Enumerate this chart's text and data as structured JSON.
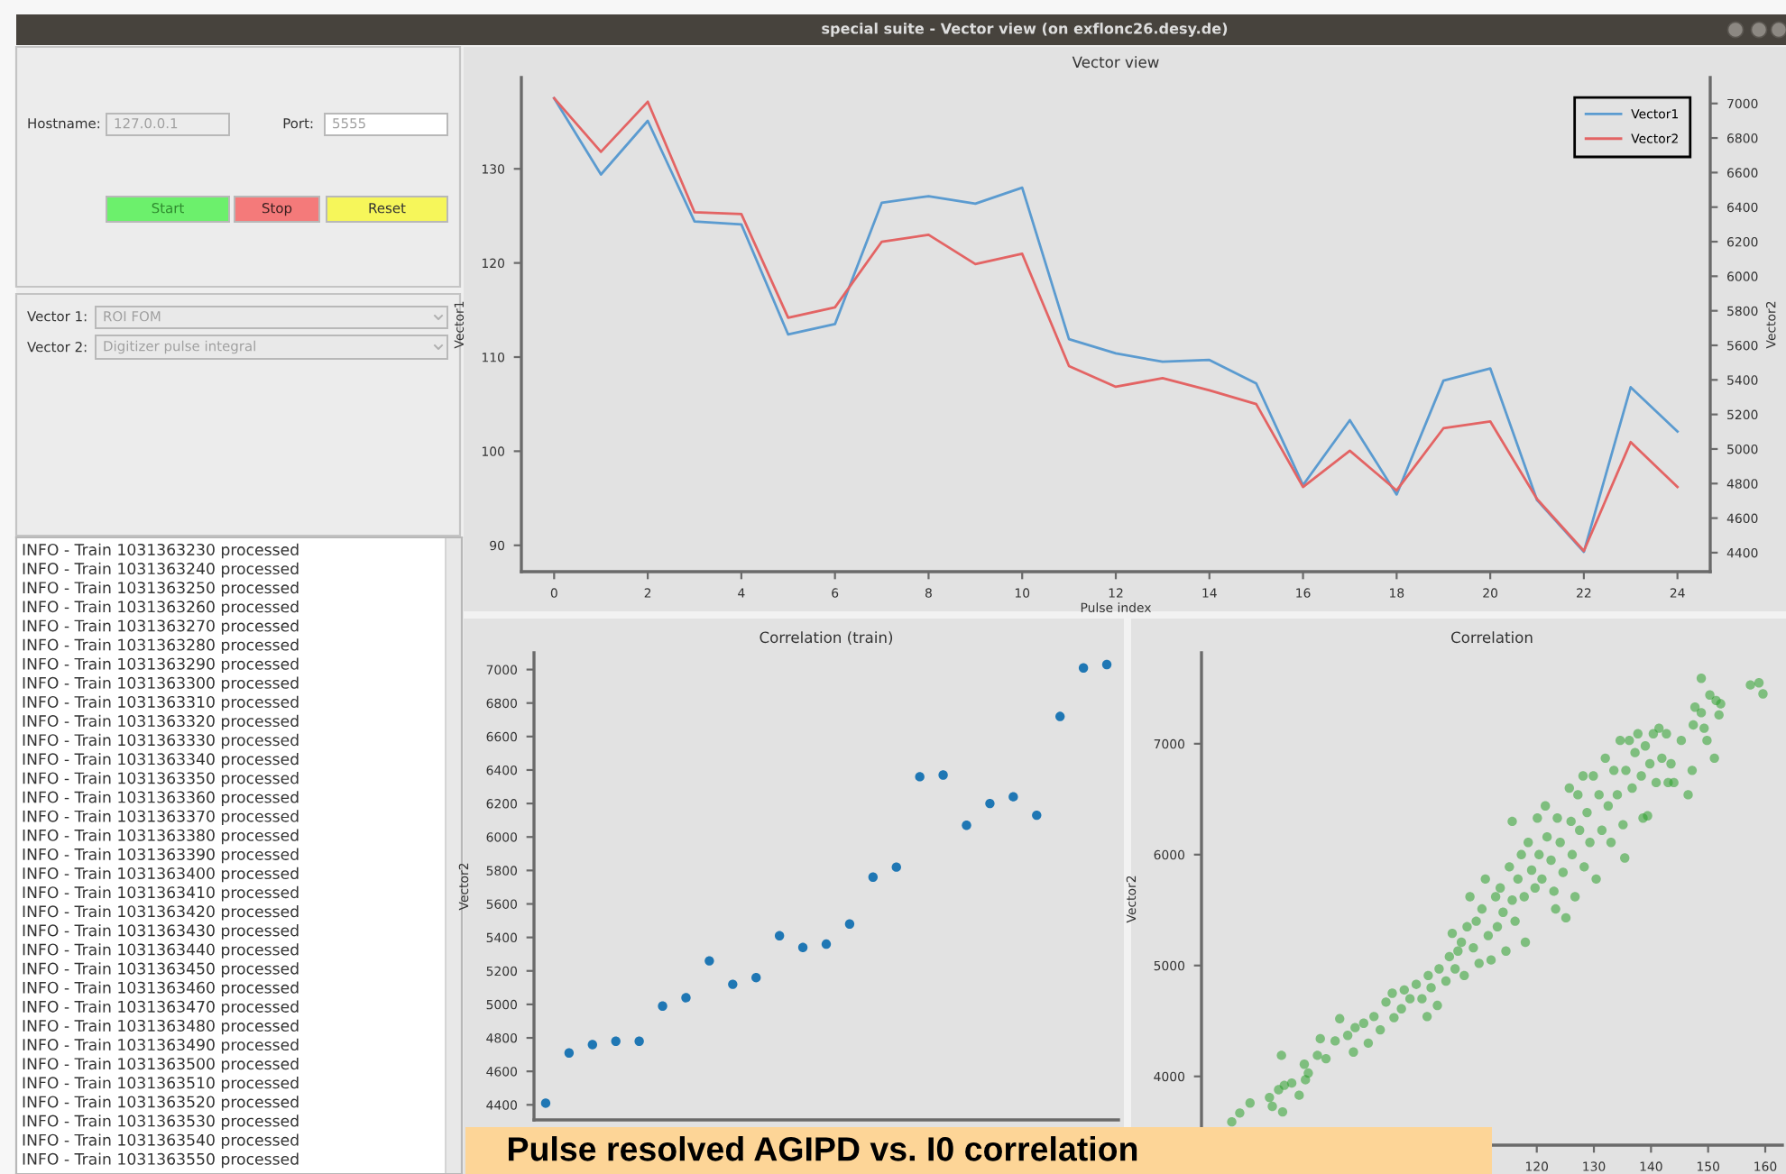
{
  "chart_data": [
    {
      "type": "other",
      "title": "special suite - Vector view (on exflonc26.desy.de)",
      "annotations": [
        "Hostname:",
        "127.0.0.1",
        "Port:",
        "5555",
        "Start",
        "Stop",
        "Reset",
        "Vector 1:",
        "ROI FOM",
        "Vector 2:",
        "Digitizer pulse integral"
      ]
    },
    {
      "type": "other",
      "annotations": [
        "INFO - Train 1031363230 processed",
        "INFO - Train 1031363240 processed",
        "INFO - Train 1031363250 processed",
        "INFO - Train 1031363260 processed",
        "INFO - Train 1031363270 processed",
        "INFO - Train 1031363280 processed",
        "INFO - Train 1031363290 processed",
        "INFO - Train 1031363300 processed",
        "INFO - Train 1031363310 processed",
        "INFO - Train 1031363320 processed",
        "INFO - Train 1031363330 processed",
        "INFO - Train 1031363340 processed",
        "INFO - Train 1031363350 processed",
        "INFO - Train 1031363360 processed",
        "INFO - Train 1031363370 processed",
        "INFO - Train 1031363380 processed",
        "INFO - Train 1031363390 processed",
        "INFO - Train 1031363400 processed",
        "INFO - Train 1031363410 processed",
        "INFO - Train 1031363420 processed",
        "INFO - Train 1031363430 processed",
        "INFO - Train 1031363440 processed",
        "INFO - Train 1031363450 processed",
        "INFO - Train 1031363460 processed",
        "INFO - Train 1031363470 processed",
        "INFO - Train 1031363480 processed",
        "INFO - Train 1031363490 processed",
        "INFO - Train 1031363500 processed",
        "INFO - Train 1031363510 processed",
        "INFO - Train 1031363520 processed",
        "INFO - Train 1031363530 processed",
        "INFO - Train 1031363540 processed",
        "INFO - Train 1031363550 processed"
      ]
    },
    {
      "type": "line",
      "title": "Vector view",
      "xlabel": "Pulse index",
      "ylabel": "Vector1",
      "y2label": "Vector2",
      "legend": "top right",
      "x": [
        0,
        1,
        2,
        3,
        4,
        5,
        6,
        7,
        8,
        9,
        10,
        11,
        12,
        13,
        14,
        15,
        16,
        17,
        18,
        19,
        20,
        21,
        22,
        23,
        24
      ],
      "xlim": [
        -0.7,
        24.7
      ],
      "xticks": [
        0,
        2,
        4,
        6,
        8,
        10,
        12,
        14,
        16,
        18,
        20,
        22,
        24
      ],
      "ylim": [
        87.2,
        139.7
      ],
      "yticks": [
        90,
        100,
        110,
        120,
        130
      ],
      "y2lim": [
        4290,
        7150
      ],
      "y2ticks": [
        4400,
        4600,
        4800,
        5000,
        5200,
        5400,
        5600,
        5800,
        6000,
        6200,
        6400,
        6600,
        6800,
        7000
      ],
      "series": [
        {
          "name": "Vector1",
          "color": "#5b9bd0",
          "values": [
            137.5,
            129.4,
            135.1,
            124.4,
            124.1,
            112.4,
            113.5,
            126.4,
            127.1,
            126.3,
            128.0,
            111.9,
            110.4,
            109.5,
            109.7,
            107.2,
            96.4,
            103.3,
            95.4,
            107.5,
            108.8,
            94.8,
            89.3,
            106.8,
            102.1
          ]
        },
        {
          "name": "Vector2",
          "color": "#e36464",
          "axis": "y2",
          "values": [
            7030,
            6720,
            7010,
            6370,
            6360,
            5760,
            5820,
            6200,
            6240,
            6070,
            6130,
            5480,
            5360,
            5410,
            5340,
            5260,
            4780,
            4990,
            4760,
            5120,
            5160,
            4710,
            4410,
            5040,
            4780
          ]
        }
      ]
    },
    {
      "type": "scatter",
      "title": "Correlation (train)",
      "ylabel": "Vector2",
      "marker": "circle",
      "tick_labels": "y",
      "categories": [
        null,
        null,
        null,
        null,
        null,
        null,
        null,
        null,
        null,
        null,
        null,
        null,
        null,
        null,
        null,
        null,
        null,
        null,
        null,
        null,
        null,
        null,
        null,
        null,
        null
      ],
      "ylim": [
        4310,
        7100
      ],
      "yticks": [
        4400,
        4600,
        4800,
        5000,
        5200,
        5400,
        5600,
        5800,
        6000,
        6200,
        6400,
        6600,
        6800,
        7000
      ],
      "series": [
        {
          "color": "#1f77b4",
          "values": [
            4410,
            4710,
            4760,
            4780,
            4780,
            4990,
            5040,
            5260,
            5120,
            5160,
            5410,
            5340,
            5360,
            5480,
            5760,
            5820,
            6360,
            6370,
            6070,
            6200,
            6240,
            6130,
            6720,
            7010,
            7030
          ]
        }
      ]
    },
    {
      "type": "scatter",
      "title": "Correlation",
      "ylabel": "Vector2",
      "marker": "circle",
      "x": [
        66.6,
        68.0,
        69.8,
        73.2,
        73.7,
        74.8,
        75.3,
        75.5,
        75.8,
        77.1,
        78.4,
        79.3,
        79.5,
        80.0,
        81.6,
        82.1,
        83.1,
        84.7,
        85.5,
        86.9,
        87.9,
        88.2,
        89.7,
        90.5,
        91.5,
        92.6,
        93.6,
        94.7,
        95.0,
        96.3,
        96.8,
        97.8,
        98.9,
        99.9,
        100.8,
        101.0,
        101.5,
        102.6,
        102.9,
        104.1,
        104.7,
        105.2,
        105.7,
        106.2,
        106.8,
        107.3,
        107.8,
        108.3,
        108.9,
        109.4,
        109.9,
        110.4,
        111.0,
        111.5,
        112.0,
        112.8,
        113.1,
        113.6,
        114.1,
        114.6,
        115.2,
        115.7,
        115.7,
        116.2,
        116.7,
        117.3,
        117.8,
        118.0,
        118.5,
        119.1,
        119.7,
        120.1,
        120.4,
        120.9,
        121.5,
        121.8,
        122.5,
        123.0,
        123.3,
        123.6,
        124.1,
        124.6,
        125.1,
        125.7,
        126.0,
        126.2,
        126.7,
        127.2,
        127.5,
        128.1,
        128.3,
        128.8,
        129.3,
        129.9,
        130.4,
        130.9,
        131.4,
        132.0,
        132.5,
        133.0,
        133.5,
        134.1,
        134.6,
        135.1,
        135.4,
        135.6,
        136.2,
        136.7,
        137.2,
        137.7,
        138.3,
        138.6,
        139.0,
        139.4,
        139.8,
        140.4,
        140.9,
        141.4,
        141.9,
        142.7,
        143.0,
        143.5,
        144.0,
        145.3,
        146.5,
        147.2,
        147.4,
        147.7,
        148.8,
        149.3,
        148.8,
        149.8,
        150.3,
        151.1,
        151.4,
        151.9,
        152.2,
        157.4,
        158.9,
        159.6
      ],
      "xlim": [
        61.3,
        163
      ],
      "xticks": [
        120,
        130,
        140,
        150,
        160
      ],
      "ylim": [
        3380,
        7820
      ],
      "yticks": [
        4000,
        5000,
        6000,
        7000
      ],
      "series": [
        {
          "color": "#2ca02c",
          "values": [
            3590,
            3670,
            3760,
            3810,
            3730,
            3880,
            4190,
            3680,
            3920,
            3940,
            3830,
            4110,
            3970,
            4030,
            4190,
            4340,
            4160,
            4320,
            4520,
            4370,
            4220,
            4440,
            4480,
            4300,
            4540,
            4420,
            4670,
            4750,
            4530,
            4610,
            4780,
            4700,
            4830,
            4700,
            4540,
            4910,
            4800,
            4640,
            4970,
            4860,
            5080,
            5290,
            4970,
            5130,
            5210,
            4910,
            5350,
            5620,
            5160,
            5400,
            5020,
            5510,
            5780,
            5270,
            5050,
            5620,
            5350,
            5700,
            5480,
            5130,
            5890,
            6300,
            5590,
            5400,
            5780,
            6000,
            5620,
            5210,
            6110,
            5860,
            5700,
            6330,
            6000,
            5780,
            6440,
            6160,
            5950,
            5670,
            5510,
            6330,
            6110,
            5840,
            5430,
            6600,
            6300,
            6000,
            5620,
            6540,
            6220,
            6710,
            5890,
            6380,
            6110,
            6710,
            5780,
            6540,
            6220,
            6870,
            6440,
            6110,
            6760,
            6540,
            7030,
            6270,
            5970,
            6760,
            7030,
            6600,
            6920,
            7090,
            6710,
            6330,
            6980,
            6350,
            6820,
            7090,
            6650,
            7140,
            6870,
            7090,
            6650,
            6820,
            6650,
            7030,
            6540,
            6760,
            7170,
            7330,
            7280,
            7140,
            7590,
            7030,
            7440,
            6870,
            7390,
            7260,
            7360,
            7530,
            7550,
            7450
          ]
        }
      ]
    },
    {
      "type": "other",
      "annotations": [
        "Pulse resolved AGIPD vs. I0 correlation"
      ]
    }
  ]
}
